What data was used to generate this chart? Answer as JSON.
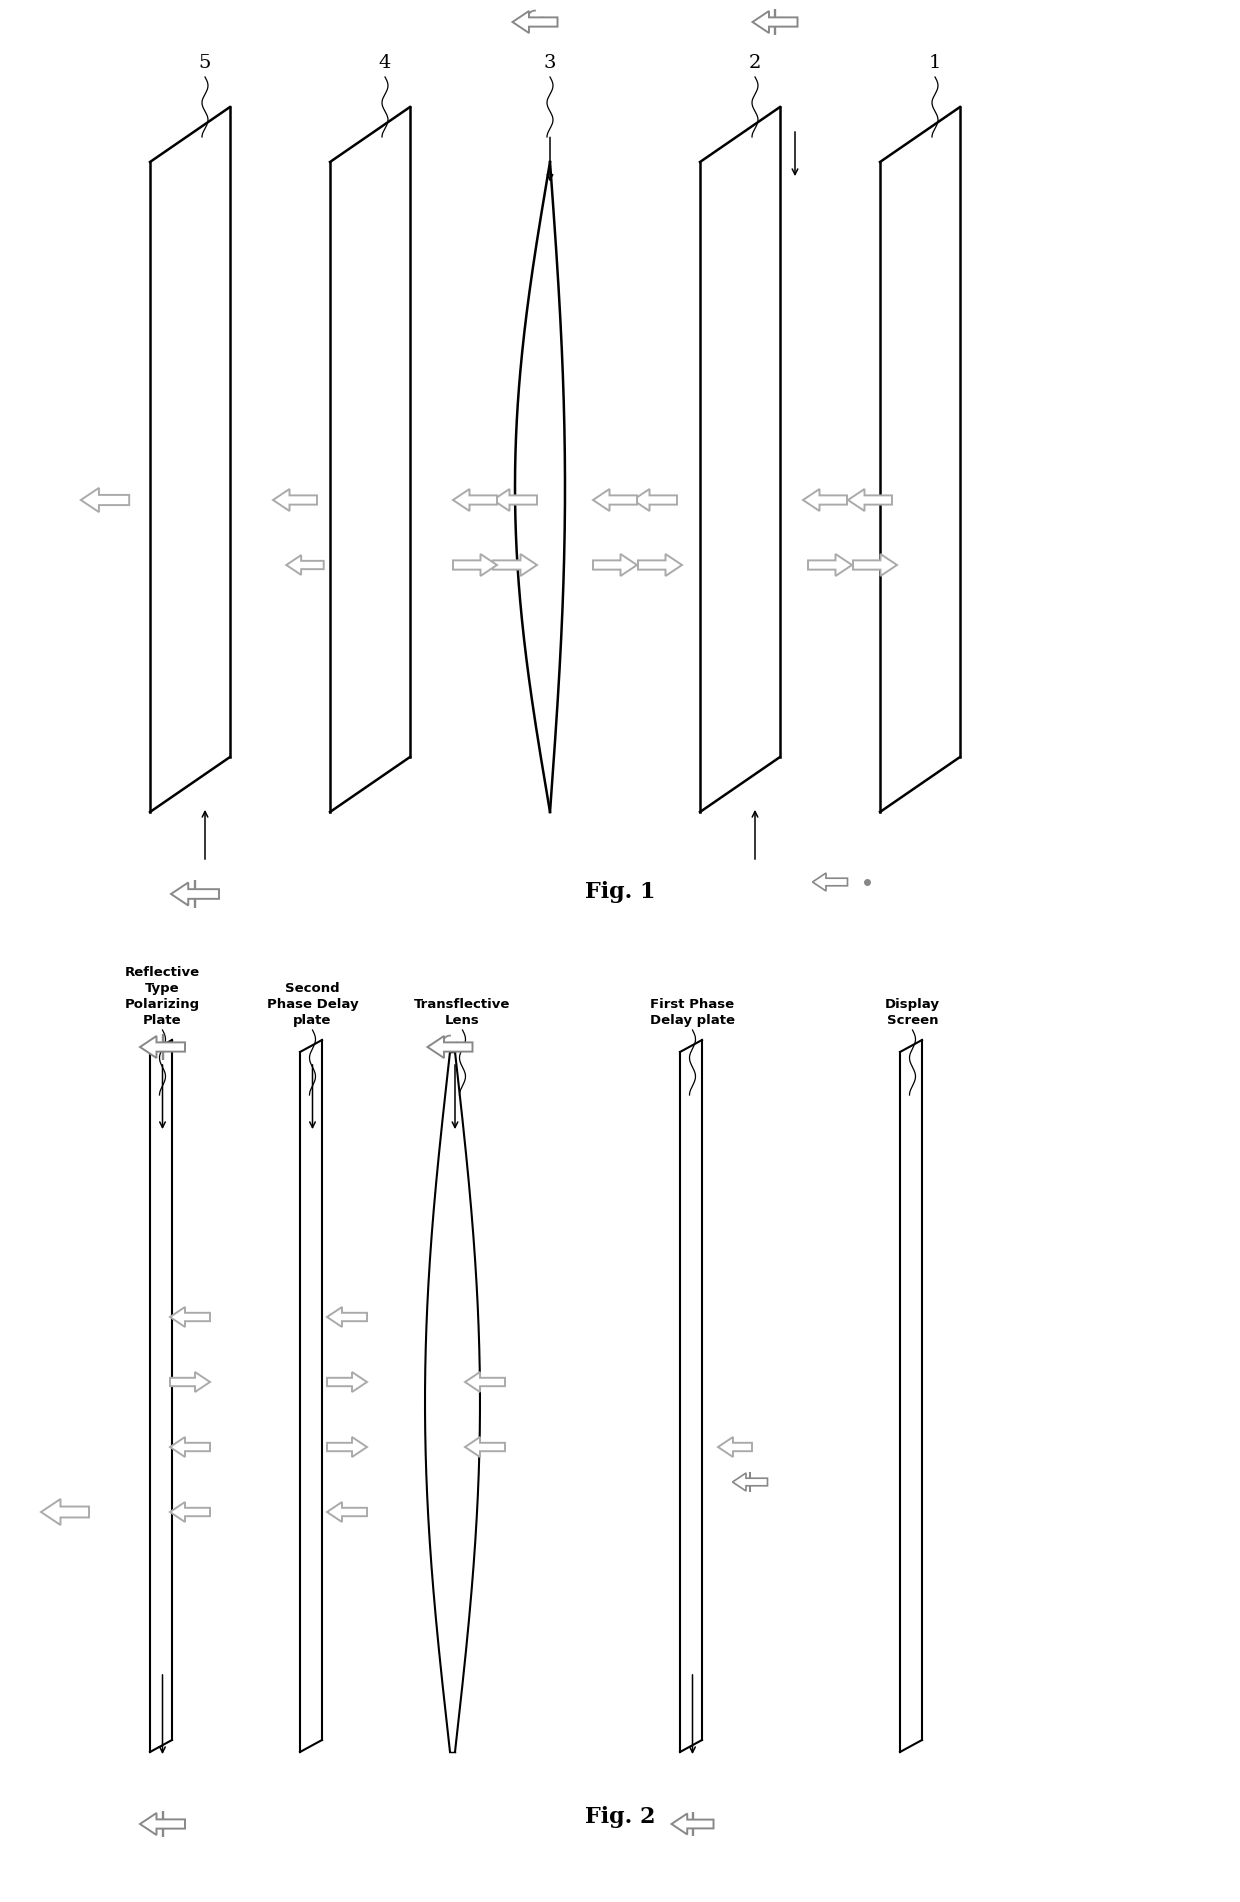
{
  "fig1_title": "Fig. 1",
  "fig2_title": "Fig. 2",
  "fig1_labels": [
    "5",
    "4",
    "3",
    "2",
    "1"
  ],
  "fig2_labels": [
    "Reflective\nType\nPolarizing\nPlate",
    "Second\nPhase Delay\nplate",
    "Transflective\nLens",
    "First Phase\nDelay plate",
    "Display\nScreen"
  ],
  "bg_color": "#ffffff",
  "line_color": "#000000",
  "arrow_ec": "#aaaaaa",
  "arrow_fc": "#ffffff"
}
